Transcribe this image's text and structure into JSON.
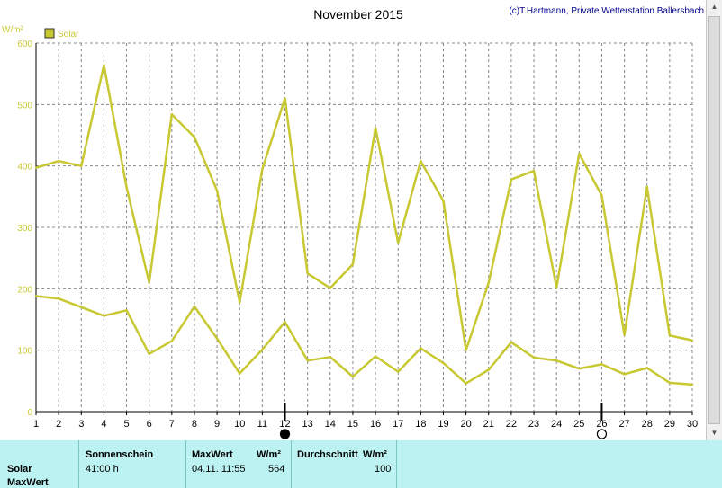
{
  "header": {
    "title": "November 2015",
    "credit": "(c)T.Hartmann, Private Wetterstation Ballersbach",
    "unit": "W/m²"
  },
  "legend": {
    "label": "Solar",
    "color": "#c8c832"
  },
  "chart_data": {
    "type": "line",
    "title": "November 2015",
    "ylabel": "W/m²",
    "ylim": [
      0,
      600
    ],
    "yticks": [
      0,
      100,
      200,
      300,
      400,
      500,
      600
    ],
    "x": [
      1,
      2,
      3,
      4,
      5,
      6,
      7,
      8,
      9,
      10,
      11,
      12,
      13,
      14,
      15,
      16,
      17,
      18,
      19,
      20,
      21,
      22,
      23,
      24,
      25,
      26,
      27,
      28,
      29,
      30
    ],
    "grid": true,
    "legend_position": "top-left",
    "series": [
      {
        "name": "Solar",
        "role": "max",
        "color": "#c8c832",
        "values": [
          397,
          408,
          400,
          564,
          365,
          210,
          484,
          447,
          360,
          178,
          395,
          510,
          225,
          201,
          240,
          462,
          275,
          408,
          343,
          100,
          210,
          378,
          392,
          202,
          420,
          352,
          125,
          366,
          124,
          116
        ]
      },
      {
        "role": "mean",
        "color": "#c8c832",
        "values": [
          188,
          184,
          170,
          156,
          165,
          94,
          115,
          171,
          119,
          62,
          101,
          146,
          83,
          89,
          57,
          90,
          65,
          103,
          79,
          46,
          68,
          113,
          88,
          83,
          70,
          77,
          61,
          71,
          47,
          44
        ]
      }
    ],
    "markers": [
      {
        "x": 12,
        "type": "full-moon"
      },
      {
        "x": 26,
        "type": "new-moon"
      }
    ]
  },
  "panel": {
    "row_labels": [
      "Solar",
      "MaxWert"
    ],
    "sunshine_header": "Sonnenschein",
    "sunshine_value": "41:00 h",
    "max_header": "MaxWert",
    "max_unit": "W/m²",
    "max_datetime": "04.11.  11:55",
    "max_value": "564",
    "avg_header": "Durchschnitt",
    "avg_unit": "W/m²",
    "avg_value": "100"
  }
}
